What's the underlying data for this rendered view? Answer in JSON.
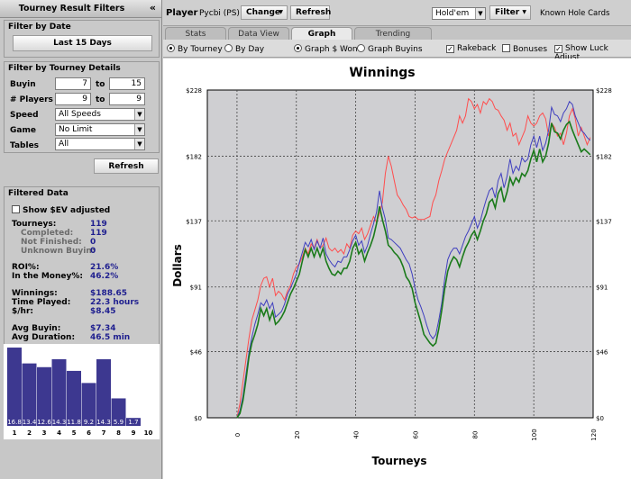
{
  "left": {
    "title": "Tourney Result Filters",
    "collapse_icon": "«",
    "by_date": {
      "header": "Filter by Date",
      "button": "Last 15 Days"
    },
    "details": {
      "header": "Filter by Tourney Details",
      "buyin_label": "Buyin",
      "buyin_from": "7",
      "to_label": "to",
      "buyin_to": "15",
      "players_label": "# Players",
      "players_from": "9",
      "players_to": "9",
      "speed_label": "Speed",
      "speed_value": "All Speeds",
      "game_label": "Game",
      "game_value": "No Limit",
      "tables_label": "Tables",
      "tables_value": "All",
      "refresh": "Refresh"
    },
    "filtered": {
      "header": "Filtered Data",
      "show_ev": "Show $EV adjusted",
      "tourneys_label": "Tourneys:",
      "tourneys": "119",
      "completed_label": "Completed:",
      "completed": "119",
      "not_finished_label": "Not Finished:",
      "not_finished": "0",
      "unknown_label": "Unknown Buyin:",
      "unknown": "0",
      "roi_label": "ROI%:",
      "roi": "21.6%",
      "itm_label": "In the Money%:",
      "itm": "46.2%",
      "winnings_label": "Winnings:",
      "winnings": "$188.65",
      "time_label": "Time Played:",
      "time": "22.3 hours",
      "hr_label": "$/hr:",
      "hr": "$8.45",
      "avg_buyin_label": "Avg Buyin:",
      "avg_buyin": "$7.34",
      "avg_dur_label": "Avg Duration:",
      "avg_dur": "46.5 min"
    },
    "finish_chart": {
      "categories": [
        "1",
        "2",
        "3",
        "4",
        "5",
        "6",
        "7",
        "8",
        "9",
        "10"
      ],
      "values": [
        16.8,
        13.4,
        12.6,
        14.3,
        11.8,
        9.2,
        14.3,
        5.9,
        1.7,
        0
      ],
      "labels": [
        "16.8",
        "13.4",
        "12.6",
        "14.3",
        "11.8",
        "9.2",
        "14.3",
        "5.9",
        "1.7",
        ""
      ],
      "bar_color": "#3d3890"
    }
  },
  "top": {
    "player_label": "Player",
    "player_value": "Pycbi (PS)",
    "change": "Change",
    "refresh": "Refresh",
    "game_select": "Hold'em",
    "filter": "Filter",
    "known": "Known Hole Cards"
  },
  "tabs": [
    "Stats",
    "Data View",
    "Graph",
    "Trending"
  ],
  "options": {
    "by_tourney": "By Tourney",
    "by_day": "By Day",
    "won": "Graph $ Won",
    "buyins": "Graph Buyins",
    "rakeback": "Rakeback",
    "bonuses": "Bonuses",
    "luck": "Show Luck Adjust"
  },
  "chart_data": {
    "type": "line",
    "title": "Winnings",
    "xlabel": "Tourneys",
    "ylabel": "Dollars",
    "xlim": [
      -10,
      120
    ],
    "ylim": [
      0,
      228
    ],
    "x_ticks": [
      0,
      20,
      40,
      60,
      80,
      100,
      120
    ],
    "y_ticks": [
      0,
      46,
      91,
      137,
      182,
      228
    ],
    "y_tick_labels": [
      "$0",
      "$46",
      "$91",
      "$137",
      "$182",
      "$228"
    ],
    "grid": true,
    "series": [
      {
        "color": "#ff4d4d",
        "x_start": 0,
        "values": [
          0,
          10,
          25,
          40,
          55,
          68,
          75,
          82,
          92,
          97,
          98,
          91,
          97,
          85,
          88,
          86,
          82,
          88,
          92,
          100,
          105,
          107,
          112,
          118,
          114,
          121,
          118,
          124,
          118,
          120,
          125,
          118,
          116,
          118,
          115,
          117,
          114,
          121,
          118,
          127,
          130,
          128,
          132,
          124,
          128,
          134,
          140,
          136,
          142,
          150,
          170,
          182,
          175,
          165,
          155,
          152,
          148,
          145,
          140,
          139,
          140,
          138,
          138,
          138,
          139,
          140,
          150,
          155,
          165,
          172,
          180,
          185,
          190,
          195,
          200,
          210,
          205,
          210,
          222,
          220,
          215,
          218,
          212,
          220,
          218,
          222,
          220,
          215,
          214,
          210,
          207,
          200,
          205,
          196,
          198,
          190,
          195,
          200,
          210,
          205,
          203,
          205,
          210,
          212,
          208,
          196,
          205,
          202,
          196,
          198,
          190,
          198,
          210,
          215,
          208,
          196,
          202,
          196,
          190,
          195
        ]
      },
      {
        "color": "#3f3fbf",
        "x_start": 0,
        "values": [
          0,
          5,
          15,
          30,
          45,
          56,
          65,
          72,
          80,
          78,
          82,
          76,
          80,
          70,
          72,
          74,
          79,
          86,
          90,
          95,
          100,
          108,
          115,
          122,
          119,
          124,
          117,
          123,
          118,
          125,
          114,
          110,
          107,
          105,
          109,
          108,
          112,
          112,
          117,
          123,
          127,
          120,
          123,
          115,
          120,
          128,
          135,
          143,
          158,
          146,
          138,
          125,
          124,
          122,
          120,
          118,
          114,
          110,
          107,
          100,
          90,
          82,
          77,
          71,
          64,
          58,
          55,
          58,
          68,
          80,
          97,
          110,
          115,
          118,
          118,
          114,
          120,
          126,
          130,
          135,
          140,
          132,
          137,
          145,
          152,
          158,
          160,
          153,
          165,
          170,
          160,
          168,
          180,
          170,
          175,
          172,
          181,
          178,
          180,
          190,
          196,
          188,
          196,
          186,
          191,
          200,
          216,
          211,
          210,
          206,
          212,
          215,
          220,
          218,
          210,
          205,
          200,
          198,
          195,
          193
        ]
      },
      {
        "color": "#1a7a1a",
        "x_start": 0,
        "values": [
          0,
          3,
          12,
          26,
          42,
          52,
          58,
          65,
          76,
          71,
          76,
          68,
          74,
          65,
          67,
          70,
          74,
          80,
          86,
          90,
          95,
          100,
          109,
          117,
          112,
          118,
          112,
          118,
          112,
          118,
          109,
          104,
          100,
          99,
          102,
          100,
          104,
          104,
          109,
          118,
          122,
          114,
          117,
          109,
          115,
          120,
          126,
          135,
          147,
          138,
          130,
          120,
          118,
          115,
          113,
          110,
          105,
          98,
          95,
          90,
          80,
          73,
          66,
          58,
          55,
          52,
          50,
          52,
          62,
          75,
          90,
          102,
          108,
          112,
          110,
          105,
          112,
          118,
          122,
          127,
          130,
          124,
          130,
          137,
          142,
          150,
          152,
          146,
          156,
          160,
          150,
          157,
          167,
          162,
          167,
          164,
          170,
          168,
          172,
          180,
          186,
          178,
          187,
          178,
          182,
          191,
          205,
          199,
          198,
          194,
          200,
          204,
          206,
          200,
          195,
          190,
          185,
          187,
          185,
          183
        ]
      }
    ]
  }
}
